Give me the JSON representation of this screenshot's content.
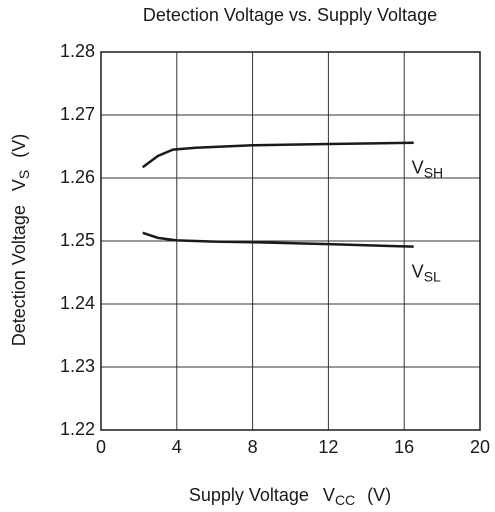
{
  "chart_data": {
    "type": "line",
    "title": "Detection Voltage vs. Supply Voltage",
    "xlabel": {
      "text": "Supply Voltage",
      "symbol": "V",
      "subscript": "CC",
      "unit": "(V)"
    },
    "ylabel": {
      "text": "Detection Voltage",
      "symbol": "V",
      "subscript": "S",
      "unit": "(V)"
    },
    "xlim": [
      0,
      20
    ],
    "xticks": [
      0,
      4,
      8,
      12,
      16,
      20
    ],
    "ylim": [
      1.22,
      1.28
    ],
    "yticks": [
      1.22,
      1.23,
      1.24,
      1.25,
      1.26,
      1.27,
      1.28
    ],
    "grid": true,
    "series": [
      {
        "name": "VSH",
        "color": "#1a1a1a",
        "x": [
          2.2,
          3,
          3.8,
          5,
          8,
          12,
          16.5
        ],
        "values": [
          1.2617,
          1.2635,
          1.2645,
          1.2648,
          1.2652,
          1.2654,
          1.2656
        ]
      },
      {
        "name": "VSL",
        "color": "#1a1a1a",
        "x": [
          2.2,
          3,
          4,
          6,
          8,
          12,
          16.5
        ],
        "values": [
          1.2513,
          1.2505,
          1.2501,
          1.2499,
          1.2498,
          1.2495,
          1.2491
        ]
      }
    ]
  }
}
